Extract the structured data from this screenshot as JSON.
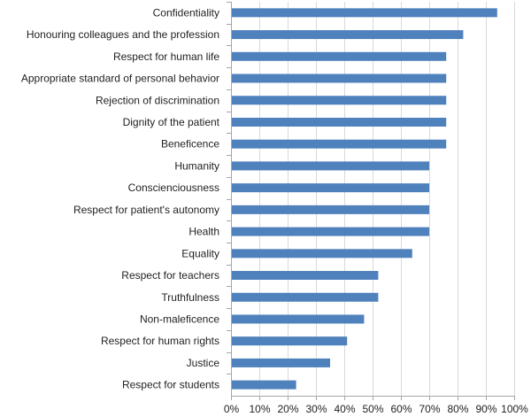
{
  "chart_data": {
    "type": "bar",
    "orientation": "horizontal",
    "title": "",
    "xlabel": "",
    "ylabel": "",
    "xlim": [
      0,
      100
    ],
    "grid": true,
    "legend": "none",
    "bar_color": "#4f81bd",
    "categories": [
      "Confidentiality",
      "Honouring colleagues and the profession",
      "Respect for human life",
      "Appropriate standard of personal behavior",
      "Rejection of discrimination",
      "Dignity of the patient",
      "Beneficence",
      "Humanity",
      "Conscienciousness",
      "Respect for patient's autonomy",
      "Health",
      "Equality",
      "Respect for teachers",
      "Truthfulness",
      "Non-maleficence",
      "Respect for human rights",
      "Justice",
      "Respect for students"
    ],
    "values": [
      94,
      82,
      76,
      76,
      76,
      76,
      76,
      70,
      70,
      70,
      70,
      64,
      52,
      52,
      47,
      41,
      35,
      23
    ],
    "x_ticks": [
      "0%",
      "10%",
      "20%",
      "30%",
      "40%",
      "50%",
      "60%",
      "70%",
      "80%",
      "90%",
      "100%"
    ]
  }
}
